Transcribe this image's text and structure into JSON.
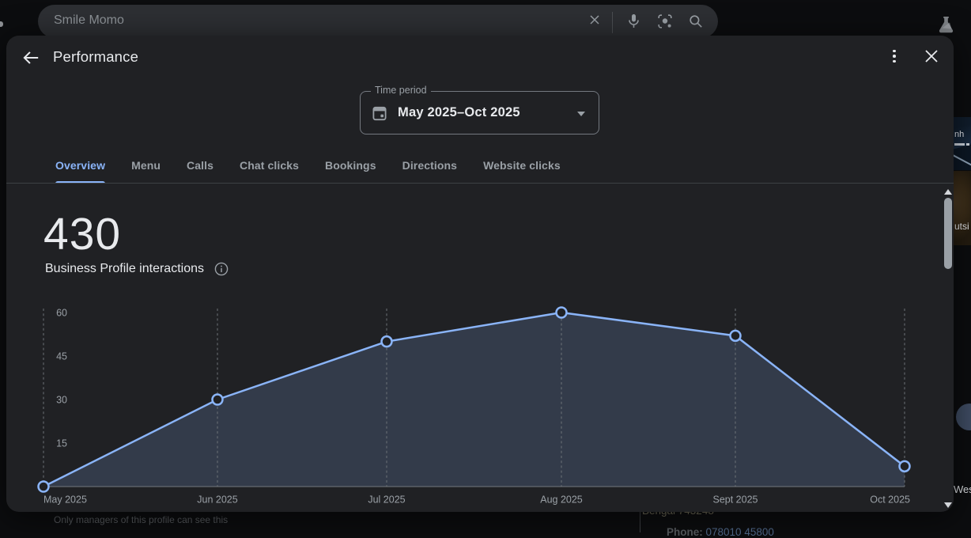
{
  "browser": {
    "search_query": "Smile Momo"
  },
  "panel": {
    "title": "Performance",
    "time_period": {
      "label": "Time period",
      "value": "May 2025–Oct 2025"
    },
    "tabs": [
      "Overview",
      "Menu",
      "Calls",
      "Chat clicks",
      "Bookings",
      "Directions",
      "Website clicks"
    ],
    "active_tab": "Overview",
    "metric_value": "430",
    "metric_label": "Business Profile interactions"
  },
  "background_page": {
    "footnote": "Only managers of this profile can see this",
    "address_fragment": "Bengal 743248",
    "phone_label": "Phone:",
    "phone_number": "078010 45800",
    "photo_text_fragment": "nh",
    "photo_caption_fragment": "utsi",
    "region_fragment": "Wes"
  },
  "chart_data": {
    "type": "area",
    "title": "Business Profile interactions",
    "x": [
      "May 2025",
      "Jun 2025",
      "Jul 2025",
      "Aug 2025",
      "Sept 2025",
      "Oct 2025"
    ],
    "values": [
      0,
      30,
      50,
      60,
      52,
      7
    ],
    "yticks": [
      15,
      30,
      45,
      60
    ],
    "ylim": [
      0,
      60
    ],
    "line_color": "#8ab4f8",
    "point_fill": "#202124",
    "grid": "dashed-vertical",
    "legend": "none"
  },
  "colors": {
    "accent_blue": "#8ab4f8",
    "panel_bg": "#202124",
    "text_primary": "#e8eaed",
    "text_secondary": "#9aa0a6"
  }
}
